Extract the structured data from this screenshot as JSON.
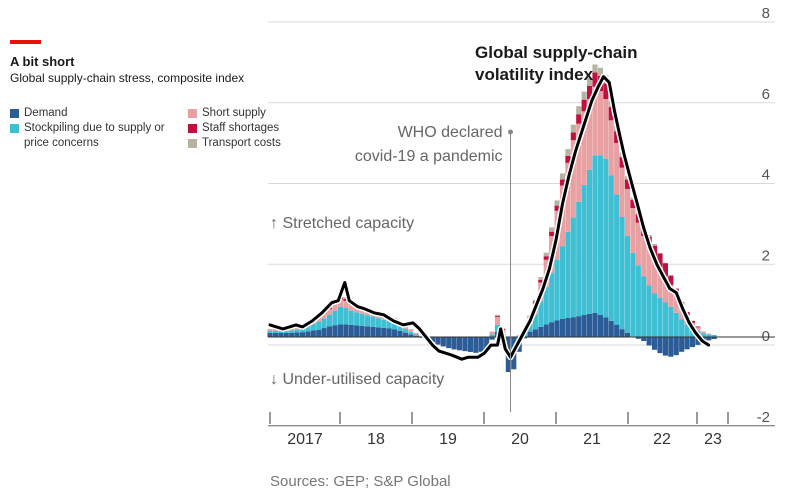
{
  "header": {
    "title": "A bit short",
    "subtitle": "Global supply-chain stress, composite index"
  },
  "legend": {
    "left": [
      {
        "label": "Demand",
        "color": "#2b5c97"
      },
      {
        "label": "Stockpiling due to supply or price concerns",
        "color": "#3fbfd3"
      }
    ],
    "right": [
      {
        "label": "Short supply",
        "color": "#e8a0a3"
      },
      {
        "label": "Staff shortages",
        "color": "#c0103f"
      },
      {
        "label": "Transport costs",
        "color": "#b8b2a3"
      }
    ]
  },
  "annotations": {
    "who": [
      "WHO declared",
      "covid-19 a pandemic"
    ],
    "index_label": [
      "Global supply-chain",
      "volatility index"
    ],
    "stretched": "↑ Stretched capacity",
    "under": "↓ Under-utilised capacity"
  },
  "source": "Sources: GEP; S&P Global",
  "chart_data": {
    "type": "bar",
    "x_axis": {
      "tick_labels": [
        "2017",
        "18",
        "19",
        "20",
        "21",
        "22",
        "23"
      ]
    },
    "y_axis": {
      "tick_labels": [
        "8",
        "6",
        "4",
        "2",
        "0",
        "-2"
      ],
      "ylim": [
        -2,
        8
      ]
    },
    "x_range": [
      2016.5,
      2023.7
    ],
    "who_declaration_date": 2020.2,
    "series": [
      {
        "name": "Demand",
        "color": "#2b5c97",
        "points": [
          [
            2016.5,
            0.1
          ],
          [
            2016.75,
            0.1
          ],
          [
            2017.0,
            0.12
          ],
          [
            2017.25,
            0.18
          ],
          [
            2017.45,
            0.28
          ],
          [
            2017.6,
            0.32
          ],
          [
            2017.75,
            0.3
          ],
          [
            2017.9,
            0.28
          ],
          [
            2018.1,
            0.25
          ],
          [
            2018.4,
            0.2
          ],
          [
            2018.7,
            0.05
          ],
          [
            2018.9,
            -0.05
          ],
          [
            2019.1,
            -0.2
          ],
          [
            2019.3,
            -0.3
          ],
          [
            2019.5,
            -0.35
          ],
          [
            2019.7,
            -0.4
          ],
          [
            2019.85,
            -0.3
          ],
          [
            2019.95,
            0.05
          ],
          [
            2020.05,
            0.2
          ],
          [
            2020.1,
            -0.4
          ],
          [
            2020.2,
            -1.1
          ],
          [
            2020.3,
            -0.5
          ],
          [
            2020.45,
            0.1
          ],
          [
            2020.6,
            0.2
          ],
          [
            2020.8,
            0.35
          ],
          [
            2021.0,
            0.45
          ],
          [
            2021.2,
            0.5
          ],
          [
            2021.35,
            0.55
          ],
          [
            2021.5,
            0.6
          ],
          [
            2021.65,
            0.5
          ],
          [
            2021.8,
            0.35
          ],
          [
            2021.95,
            0.15
          ],
          [
            2022.1,
            0.0
          ],
          [
            2022.25,
            -0.1
          ],
          [
            2022.4,
            -0.3
          ],
          [
            2022.55,
            -0.45
          ],
          [
            2022.7,
            -0.5
          ],
          [
            2022.85,
            -0.35
          ],
          [
            2023.0,
            -0.25
          ],
          [
            2023.15,
            -0.15
          ],
          [
            2023.3,
            -0.05
          ]
        ]
      },
      {
        "name": "Stockpiling due to supply or price concerns",
        "color": "#3fbfd3",
        "points": [
          [
            2016.5,
            0.05
          ],
          [
            2016.75,
            0.05
          ],
          [
            2017.0,
            0.08
          ],
          [
            2017.25,
            0.2
          ],
          [
            2017.45,
            0.3
          ],
          [
            2017.6,
            0.45
          ],
          [
            2017.75,
            0.35
          ],
          [
            2017.9,
            0.3
          ],
          [
            2018.1,
            0.25
          ],
          [
            2018.4,
            0.15
          ],
          [
            2018.7,
            0.05
          ],
          [
            2018.9,
            0.0
          ],
          [
            2019.1,
            0.0
          ],
          [
            2019.3,
            0.0
          ],
          [
            2019.5,
            0.0
          ],
          [
            2019.7,
            0.0
          ],
          [
            2019.85,
            0.0
          ],
          [
            2019.95,
            0.1
          ],
          [
            2020.05,
            0.25
          ],
          [
            2020.1,
            0.0
          ],
          [
            2020.2,
            0.0
          ],
          [
            2020.3,
            0.0
          ],
          [
            2020.45,
            0.1
          ],
          [
            2020.6,
            0.4
          ],
          [
            2020.8,
            1.1
          ],
          [
            2021.0,
            1.8
          ],
          [
            2021.2,
            2.6
          ],
          [
            2021.35,
            3.3
          ],
          [
            2021.5,
            3.9
          ],
          [
            2021.65,
            4.0
          ],
          [
            2021.8,
            3.4
          ],
          [
            2021.95,
            2.6
          ],
          [
            2022.1,
            2.0
          ],
          [
            2022.25,
            1.5
          ],
          [
            2022.4,
            1.1
          ],
          [
            2022.55,
            0.9
          ],
          [
            2022.7,
            0.7
          ],
          [
            2022.85,
            0.4
          ],
          [
            2023.0,
            0.2
          ],
          [
            2023.15,
            0.1
          ],
          [
            2023.3,
            0.05
          ]
        ]
      },
      {
        "name": "Short supply",
        "color": "#e8a0a3",
        "points": [
          [
            2016.5,
            0.05
          ],
          [
            2016.75,
            0.05
          ],
          [
            2017.0,
            0.05
          ],
          [
            2017.25,
            0.1
          ],
          [
            2017.45,
            0.15
          ],
          [
            2017.6,
            0.2
          ],
          [
            2017.75,
            0.15
          ],
          [
            2017.9,
            0.15
          ],
          [
            2018.1,
            0.1
          ],
          [
            2018.4,
            0.1
          ],
          [
            2018.7,
            0.05
          ],
          [
            2018.9,
            0.0
          ],
          [
            2019.1,
            0.0
          ],
          [
            2019.3,
            0.0
          ],
          [
            2019.5,
            0.0
          ],
          [
            2019.7,
            0.0
          ],
          [
            2019.85,
            0.0
          ],
          [
            2019.95,
            0.1
          ],
          [
            2020.05,
            0.3
          ],
          [
            2020.1,
            0.0
          ],
          [
            2020.2,
            0.0
          ],
          [
            2020.3,
            0.0
          ],
          [
            2020.45,
            0.1
          ],
          [
            2020.6,
            0.3
          ],
          [
            2020.8,
            0.8
          ],
          [
            2021.0,
            1.5
          ],
          [
            2021.2,
            2.0
          ],
          [
            2021.35,
            1.8
          ],
          [
            2021.5,
            1.7
          ],
          [
            2021.65,
            1.5
          ],
          [
            2021.8,
            1.3
          ],
          [
            2021.95,
            1.2
          ],
          [
            2022.1,
            1.1
          ],
          [
            2022.25,
            1.0
          ],
          [
            2022.4,
            0.9
          ],
          [
            2022.55,
            0.7
          ],
          [
            2022.7,
            0.5
          ],
          [
            2022.85,
            0.3
          ],
          [
            2023.0,
            0.15
          ],
          [
            2023.15,
            0.05
          ],
          [
            2023.3,
            0.0
          ]
        ]
      },
      {
        "name": "Staff shortages",
        "color": "#c0103f",
        "points": [
          [
            2016.5,
            0.0
          ],
          [
            2016.75,
            0.0
          ],
          [
            2017.0,
            0.0
          ],
          [
            2017.25,
            0.02
          ],
          [
            2017.45,
            0.03
          ],
          [
            2017.6,
            0.05
          ],
          [
            2017.75,
            0.05
          ],
          [
            2017.9,
            0.03
          ],
          [
            2018.1,
            0.03
          ],
          [
            2018.4,
            0.02
          ],
          [
            2018.7,
            0.0
          ],
          [
            2018.9,
            0.0
          ],
          [
            2019.1,
            0.0
          ],
          [
            2019.3,
            0.0
          ],
          [
            2019.5,
            0.0
          ],
          [
            2019.7,
            0.0
          ],
          [
            2019.85,
            0.0
          ],
          [
            2019.95,
            0.0
          ],
          [
            2020.05,
            0.05
          ],
          [
            2020.1,
            0.0
          ],
          [
            2020.2,
            0.0
          ],
          [
            2020.3,
            0.0
          ],
          [
            2020.45,
            0.0
          ],
          [
            2020.6,
            0.05
          ],
          [
            2020.8,
            0.1
          ],
          [
            2021.0,
            0.15
          ],
          [
            2021.2,
            0.2
          ],
          [
            2021.35,
            0.3
          ],
          [
            2021.5,
            0.35
          ],
          [
            2021.65,
            0.4
          ],
          [
            2021.8,
            0.3
          ],
          [
            2021.95,
            0.25
          ],
          [
            2022.1,
            0.2
          ],
          [
            2022.25,
            0.2
          ],
          [
            2022.4,
            0.3
          ],
          [
            2022.55,
            0.35
          ],
          [
            2022.7,
            0.2
          ],
          [
            2022.85,
            0.1
          ],
          [
            2023.0,
            0.05
          ],
          [
            2023.15,
            0.0
          ],
          [
            2023.3,
            0.0
          ]
        ]
      },
      {
        "name": "Transport costs",
        "color": "#b8b2a3",
        "points": [
          [
            2016.5,
            0.0
          ],
          [
            2016.75,
            0.0
          ],
          [
            2017.0,
            0.0
          ],
          [
            2017.25,
            0.02
          ],
          [
            2017.45,
            0.03
          ],
          [
            2017.6,
            0.05
          ],
          [
            2017.75,
            0.03
          ],
          [
            2017.9,
            0.03
          ],
          [
            2018.1,
            0.02
          ],
          [
            2018.4,
            0.02
          ],
          [
            2018.7,
            0.0
          ],
          [
            2018.9,
            0.0
          ],
          [
            2019.1,
            0.0
          ],
          [
            2019.3,
            0.0
          ],
          [
            2019.5,
            0.0
          ],
          [
            2019.7,
            0.0
          ],
          [
            2019.85,
            0.0
          ],
          [
            2019.95,
            0.0
          ],
          [
            2020.05,
            0.05
          ],
          [
            2020.1,
            0.0
          ],
          [
            2020.2,
            0.0
          ],
          [
            2020.3,
            0.0
          ],
          [
            2020.45,
            0.0
          ],
          [
            2020.6,
            0.05
          ],
          [
            2020.8,
            0.1
          ],
          [
            2021.0,
            0.15
          ],
          [
            2021.2,
            0.2
          ],
          [
            2021.35,
            0.2
          ],
          [
            2021.5,
            0.2
          ],
          [
            2021.65,
            0.2
          ],
          [
            2021.8,
            0.15
          ],
          [
            2021.95,
            0.1
          ],
          [
            2022.1,
            0.05
          ],
          [
            2022.25,
            0.05
          ],
          [
            2022.4,
            0.05
          ],
          [
            2022.55,
            0.0
          ],
          [
            2022.7,
            0.0
          ],
          [
            2022.85,
            0.0
          ],
          [
            2023.0,
            0.0
          ],
          [
            2023.15,
            0.0
          ],
          [
            2023.3,
            0.0
          ]
        ]
      }
    ],
    "line_series": {
      "name": "Global supply-chain volatility index",
      "color": "#000000",
      "points": [
        [
          2016.5,
          0.3
        ],
        [
          2016.7,
          0.2
        ],
        [
          2016.9,
          0.3
        ],
        [
          2017.0,
          0.25
        ],
        [
          2017.15,
          0.4
        ],
        [
          2017.3,
          0.6
        ],
        [
          2017.45,
          0.85
        ],
        [
          2017.55,
          0.9
        ],
        [
          2017.65,
          1.35
        ],
        [
          2017.72,
          0.9
        ],
        [
          2017.85,
          0.75
        ],
        [
          2017.95,
          0.7
        ],
        [
          2018.1,
          0.6
        ],
        [
          2018.25,
          0.55
        ],
        [
          2018.4,
          0.4
        ],
        [
          2018.55,
          0.3
        ],
        [
          2018.7,
          0.35
        ],
        [
          2018.8,
          0.2
        ],
        [
          2018.9,
          0.0
        ],
        [
          2019.0,
          -0.2
        ],
        [
          2019.1,
          -0.35
        ],
        [
          2019.2,
          -0.4
        ],
        [
          2019.3,
          -0.45
        ],
        [
          2019.45,
          -0.55
        ],
        [
          2019.55,
          -0.5
        ],
        [
          2019.7,
          -0.5
        ],
        [
          2019.8,
          -0.4
        ],
        [
          2019.9,
          -0.2
        ],
        [
          2020.0,
          -0.2
        ],
        [
          2020.05,
          0.2
        ],
        [
          2020.12,
          -0.3
        ],
        [
          2020.2,
          -0.5
        ],
        [
          2020.3,
          -0.2
        ],
        [
          2020.4,
          0.1
        ],
        [
          2020.5,
          0.4
        ],
        [
          2020.6,
          0.8
        ],
        [
          2020.7,
          1.2
        ],
        [
          2020.8,
          1.7
        ],
        [
          2020.9,
          2.4
        ],
        [
          2021.0,
          3.3
        ],
        [
          2021.1,
          4.0
        ],
        [
          2021.2,
          4.6
        ],
        [
          2021.3,
          5.1
        ],
        [
          2021.4,
          5.6
        ],
        [
          2021.45,
          5.85
        ],
        [
          2021.55,
          6.2
        ],
        [
          2021.63,
          6.45
        ],
        [
          2021.72,
          6.3
        ],
        [
          2021.8,
          5.6
        ],
        [
          2021.88,
          5.0
        ],
        [
          2021.95,
          4.5
        ],
        [
          2022.05,
          3.9
        ],
        [
          2022.15,
          3.3
        ],
        [
          2022.25,
          2.7
        ],
        [
          2022.35,
          2.2
        ],
        [
          2022.45,
          1.8
        ],
        [
          2022.55,
          1.5
        ],
        [
          2022.65,
          1.2
        ],
        [
          2022.75,
          1.1
        ],
        [
          2022.85,
          0.7
        ],
        [
          2022.95,
          0.35
        ],
        [
          2023.05,
          0.1
        ],
        [
          2023.15,
          -0.1
        ],
        [
          2023.25,
          -0.2
        ]
      ]
    },
    "grid": true
  }
}
